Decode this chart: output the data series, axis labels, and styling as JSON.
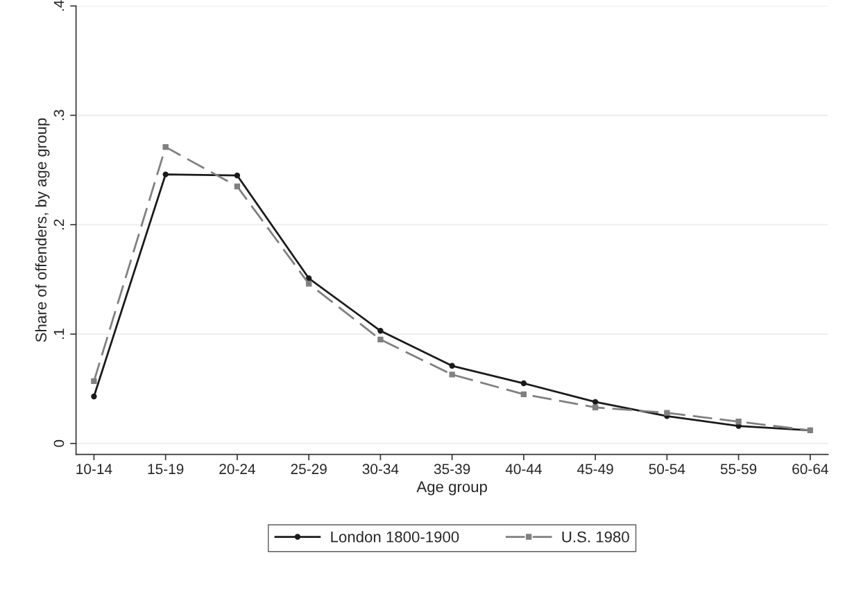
{
  "chart_data": {
    "type": "line",
    "xlabel": "Age group",
    "ylabel": "Share of offenders, by age group",
    "categories": [
      "10-14",
      "15-19",
      "20-24",
      "25-29",
      "30-34",
      "35-39",
      "40-44",
      "45-49",
      "50-54",
      "55-59",
      "60-64"
    ],
    "series": [
      {
        "name": "London 1800-1900",
        "color": "#1a1a1a",
        "marker": "circle",
        "line_style": "solid",
        "values": [
          0.043,
          0.246,
          0.245,
          0.151,
          0.103,
          0.071,
          0.055,
          0.038,
          0.025,
          0.016,
          0.012
        ]
      },
      {
        "name": "U.S. 1980",
        "color": "#808080",
        "marker": "square",
        "line_style": "dashed",
        "values": [
          0.057,
          0.271,
          0.235,
          0.146,
          0.095,
          0.063,
          0.045,
          0.033,
          0.028,
          0.02,
          0.012
        ]
      }
    ],
    "ylim": [
      -0.01,
      0.4
    ],
    "yticks": [
      {
        "value": 0,
        "label": "0"
      },
      {
        "value": 0.1,
        "label": ".1"
      },
      {
        "value": 0.2,
        "label": ".2"
      },
      {
        "value": 0.3,
        "label": ".3"
      },
      {
        "value": 0.4,
        "label": ".4"
      }
    ],
    "grid": "y",
    "legend": "bottom"
  }
}
